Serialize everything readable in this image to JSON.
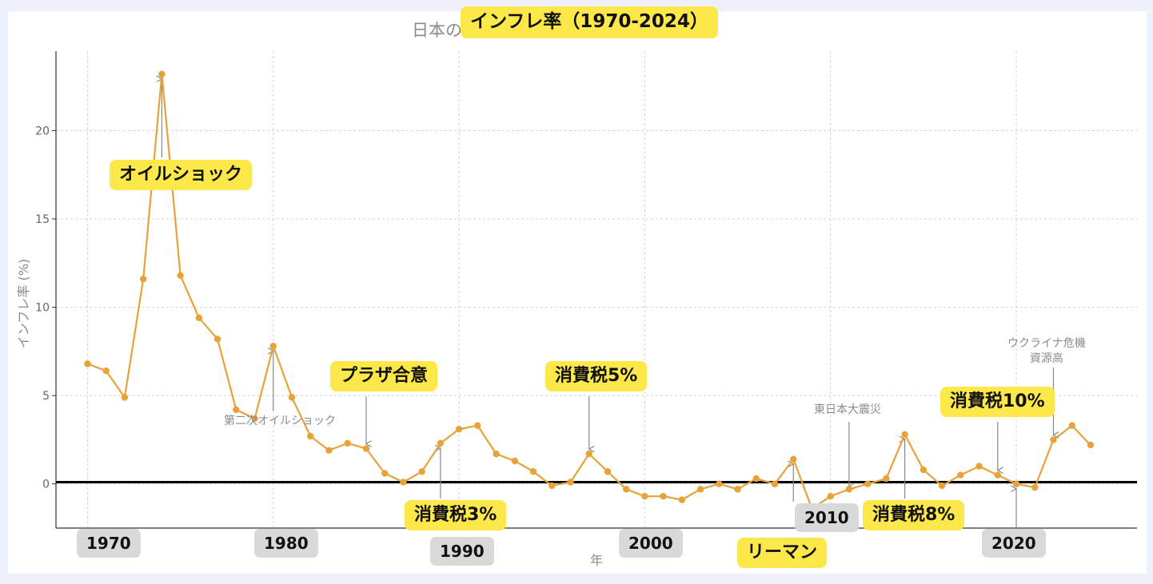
{
  "chart_data": {
    "type": "line",
    "title": "日本のインフレ率(1970-2024)",
    "title_highlight": "インフレ率（1970-2024）",
    "xlabel": "年",
    "ylabel": "インフレ率 (%)",
    "xlim": [
      1968.3,
      2026.5
    ],
    "ylim": [
      -2.5,
      24.5
    ],
    "yticks": [
      "0",
      "5",
      "10",
      "15",
      "20"
    ],
    "xticks": [
      "1970",
      "1980",
      "1990",
      "2000",
      "2010",
      "2020"
    ],
    "grid": true,
    "line_color": "#e8a23a",
    "x": [
      1970,
      1971,
      1972,
      1973,
      1974,
      1975,
      1976,
      1977,
      1978,
      1979,
      1980,
      1981,
      1982,
      1983,
      1984,
      1985,
      1986,
      1987,
      1988,
      1989,
      1990,
      1991,
      1992,
      1993,
      1994,
      1995,
      1996,
      1997,
      1998,
      1999,
      2000,
      2001,
      2002,
      2003,
      2004,
      2005,
      2006,
      2007,
      2008,
      2009,
      2010,
      2011,
      2012,
      2013,
      2014,
      2015,
      2016,
      2017,
      2018,
      2019,
      2020,
      2021,
      2022,
      2023,
      2024
    ],
    "values": [
      6.8,
      6.4,
      4.9,
      11.6,
      23.2,
      11.8,
      9.4,
      8.2,
      4.2,
      3.7,
      7.8,
      4.9,
      2.7,
      1.9,
      2.3,
      2.0,
      0.6,
      0.1,
      0.7,
      2.3,
      3.1,
      3.3,
      1.7,
      1.3,
      0.7,
      -0.1,
      0.1,
      1.7,
      0.7,
      -0.3,
      -0.7,
      -0.7,
      -0.9,
      -0.3,
      0.0,
      -0.3,
      0.3,
      0.0,
      1.4,
      -1.4,
      -0.7,
      -0.3,
      0.0,
      0.3,
      2.8,
      0.8,
      -0.1,
      0.5,
      1.0,
      0.5,
      0.0,
      -0.2,
      2.5,
      3.3,
      2.2
    ],
    "annotations": [
      {
        "text": "第二次オイルショック",
        "year": 1980
      },
      {
        "text": "東日本大震災",
        "year": 2011
      },
      {
        "text": "ウクライナ危機\n資源高",
        "year": 2022
      }
    ],
    "highlight_labels": {
      "oil_shock": "オイルショック",
      "plaza": "プラザ合意",
      "tax3": "消費税3%",
      "tax5": "消費税5%",
      "tax8": "消費税8%",
      "tax10": "消費税10%",
      "lehman": "リーマン"
    },
    "badge_years": [
      "1970",
      "1980",
      "1990",
      "2000",
      "2010",
      "2020"
    ]
  }
}
